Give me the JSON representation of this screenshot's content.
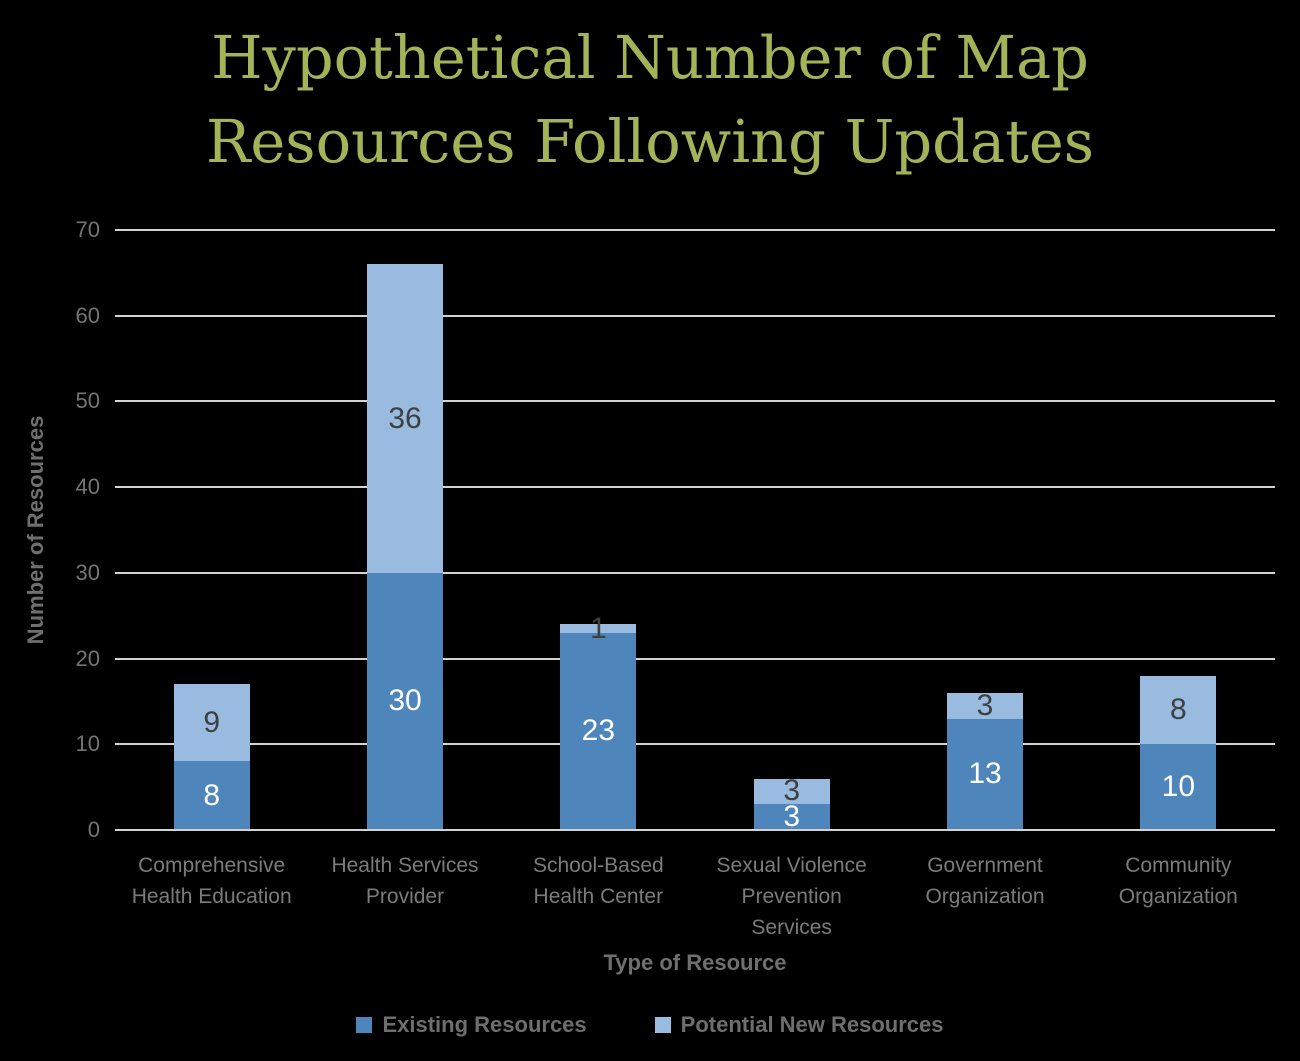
{
  "title_lines": [
    "Hypothetical Number of Map",
    "Resources Following Updates"
  ],
  "chart_data": {
    "type": "bar",
    "stacked": true,
    "title": "Hypothetical Number of Map Resources Following Updates",
    "categories": [
      "Comprehensive Health Education",
      "Health Services Provider",
      "School-Based Health Center",
      "Sexual Violence Prevention Services",
      "Government Organization",
      "Community Organization"
    ],
    "category_label_lines": [
      [
        "Comprehensive",
        "Health Education"
      ],
      [
        "Health Services",
        "Provider"
      ],
      [
        "School-Based",
        "Health Center"
      ],
      [
        "Sexual Violence",
        "Prevention",
        "Services"
      ],
      [
        "Government",
        "Organization"
      ],
      [
        "Community",
        "Organization"
      ]
    ],
    "series": [
      {
        "name": "Existing Resources",
        "color": "#4E86BC",
        "label_color": "#FFFFFF",
        "values": [
          8,
          30,
          23,
          3,
          13,
          10
        ]
      },
      {
        "name": "Potential New Resources",
        "color": "#99BBE0",
        "label_color": "#3F3F3F",
        "values": [
          9,
          36,
          1,
          3,
          3,
          8
        ]
      }
    ],
    "totals": [
      17,
      66,
      24,
      6,
      16,
      18
    ],
    "xlabel": "Type of Resource",
    "ylabel": "Number of Resources",
    "ylim": [
      0,
      70
    ],
    "yticks": [
      0,
      10,
      20,
      30,
      40,
      50,
      60,
      70
    ],
    "grid": true,
    "legend_position": "bottom"
  },
  "colors": {
    "background": "#000000",
    "title": "#A2B457",
    "gridline": "#D2D2D2",
    "tick_labels": "#747474",
    "category_labels": "#7B7B7B",
    "axis_titles": "#6F6F6F",
    "legend_text": "#6E6E6E"
  }
}
